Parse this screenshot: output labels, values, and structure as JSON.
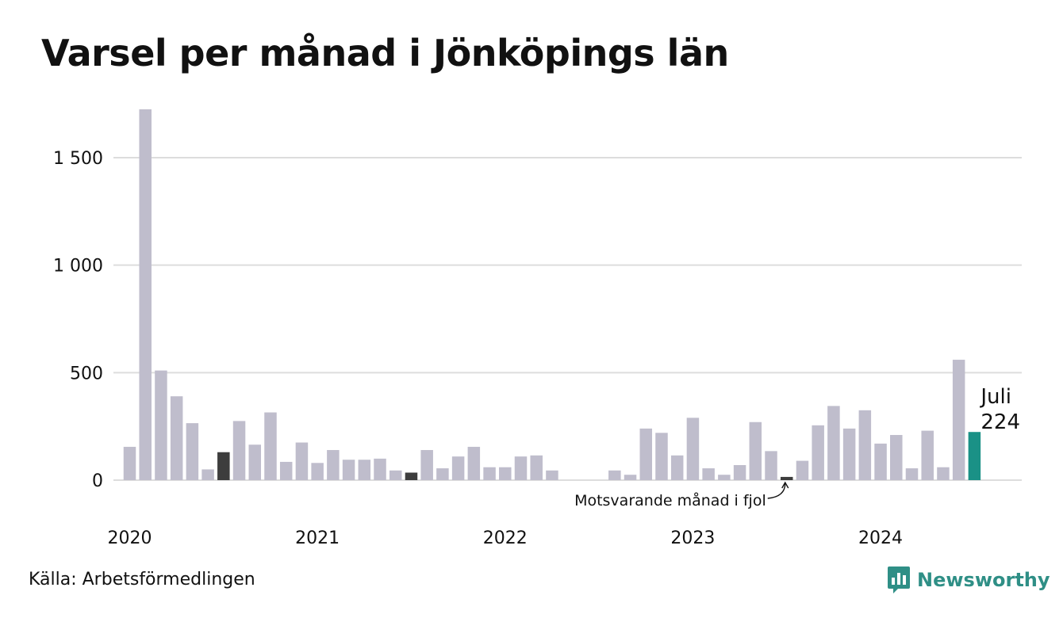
{
  "title": "Varsel per månad i Jönköpings län",
  "source": "Källa: Arbetsförmedlingen",
  "brand": {
    "name": "Newsworthy",
    "icon": "chart-bubble-icon",
    "color": "#2f8f86"
  },
  "colors": {
    "default": "#bfbdcc",
    "previous_year": "#3d3d3d",
    "current": "#1a9186",
    "grid": "#dddddd"
  },
  "chart_data": {
    "type": "bar",
    "title": "Varsel per månad i Jönköpings län",
    "xlabel": "",
    "ylabel": "",
    "ylim": [
      0,
      1750
    ],
    "yticks": [
      0,
      500,
      1000,
      1500
    ],
    "ytick_labels": [
      "0",
      "500",
      "1 000",
      "1 500"
    ],
    "xtick_labels": [
      "2020",
      "2021",
      "2022",
      "2023",
      "2024"
    ],
    "grid": true,
    "categories": [
      "2020-01",
      "2020-02",
      "2020-03",
      "2020-04",
      "2020-05",
      "2020-06",
      "2020-07",
      "2020-08",
      "2020-09",
      "2020-10",
      "2020-11",
      "2020-12",
      "2021-01",
      "2021-02",
      "2021-03",
      "2021-04",
      "2021-05",
      "2021-06",
      "2021-07",
      "2021-08",
      "2021-09",
      "2021-10",
      "2021-11",
      "2021-12",
      "2022-01",
      "2022-02",
      "2022-03",
      "2022-04",
      "2022-05",
      "2022-06",
      "2022-07",
      "2022-08",
      "2022-09",
      "2022-10",
      "2022-11",
      "2022-12",
      "2023-01",
      "2023-02",
      "2023-03",
      "2023-04",
      "2023-05",
      "2023-06",
      "2023-07",
      "2023-08",
      "2023-09",
      "2023-10",
      "2023-11",
      "2023-12",
      "2024-01",
      "2024-02",
      "2024-03",
      "2024-04",
      "2024-05",
      "2024-06",
      "2024-07"
    ],
    "values": [
      155,
      1725,
      510,
      390,
      265,
      50,
      130,
      275,
      165,
      315,
      85,
      175,
      80,
      140,
      95,
      95,
      100,
      45,
      35,
      140,
      55,
      110,
      155,
      60,
      60,
      110,
      115,
      45,
      0,
      0,
      0,
      45,
      25,
      240,
      220,
      115,
      290,
      55,
      25,
      70,
      270,
      135,
      15,
      90,
      255,
      345,
      240,
      325,
      170,
      210,
      55,
      230,
      60,
      560,
      224
    ],
    "highlights": {
      "previous_year_months": [
        "2020-07",
        "2021-07",
        "2023-07"
      ],
      "current_month": "2024-07"
    },
    "annotations": [
      {
        "target": "2023-07",
        "text": "Motsvarande månad i fjol"
      },
      {
        "target": "2024-07",
        "text": "Juli",
        "value_text": "224"
      }
    ]
  }
}
